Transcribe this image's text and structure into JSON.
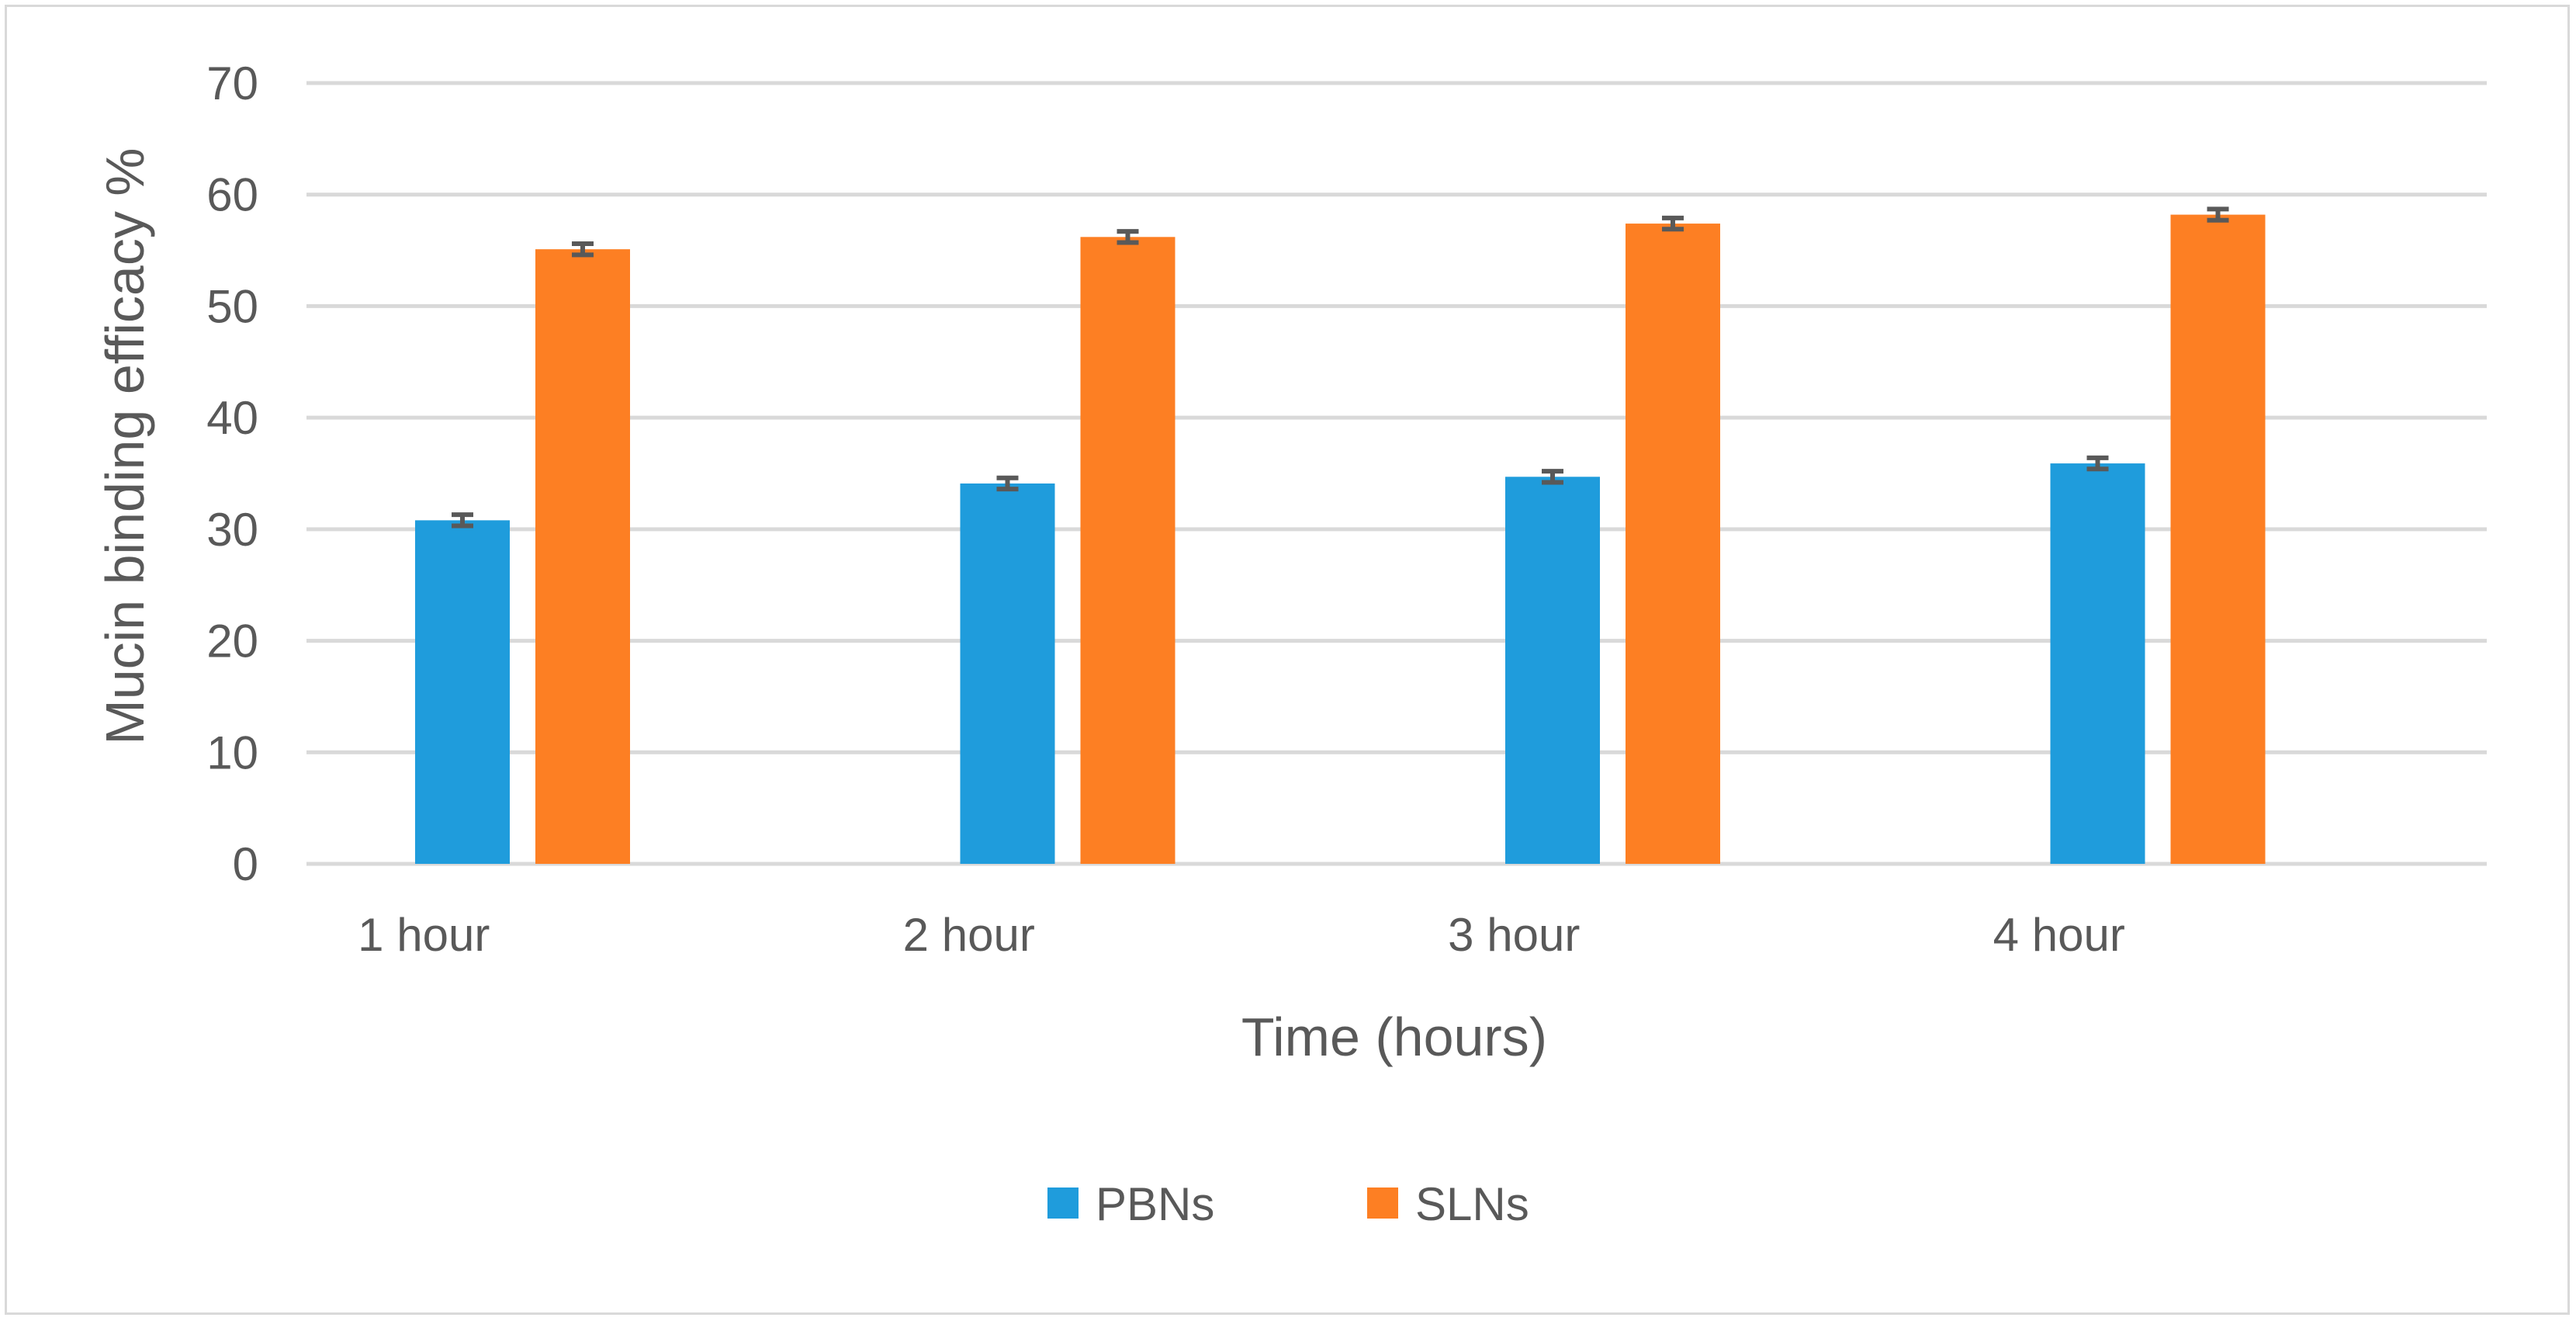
{
  "chart_data": {
    "type": "bar",
    "title": "",
    "xlabel": "Time (hours)",
    "ylabel": "Mucin binding efficacy  %",
    "categories": [
      "1 hour",
      "2 hour",
      "3 hour",
      "4 hour"
    ],
    "series": [
      {
        "name": "PBNs",
        "color": "#1f9cdc",
        "values": [
          30.8,
          34.1,
          34.7,
          35.9
        ],
        "errors": [
          0.5,
          0.5,
          0.5,
          0.5
        ]
      },
      {
        "name": "SLNs",
        "color": "#fd7f23",
        "values": [
          55.1,
          56.2,
          57.4,
          58.2
        ],
        "errors": [
          0.5,
          0.5,
          0.5,
          0.5
        ]
      }
    ],
    "ylim": [
      0,
      70
    ],
    "yticks": [
      0,
      10,
      20,
      30,
      40,
      50,
      60,
      70
    ],
    "grid": true,
    "legend_position": "bottom",
    "colors": {
      "gridline": "#d9d9d9",
      "text": "#595959",
      "error_bar": "#595959"
    }
  }
}
